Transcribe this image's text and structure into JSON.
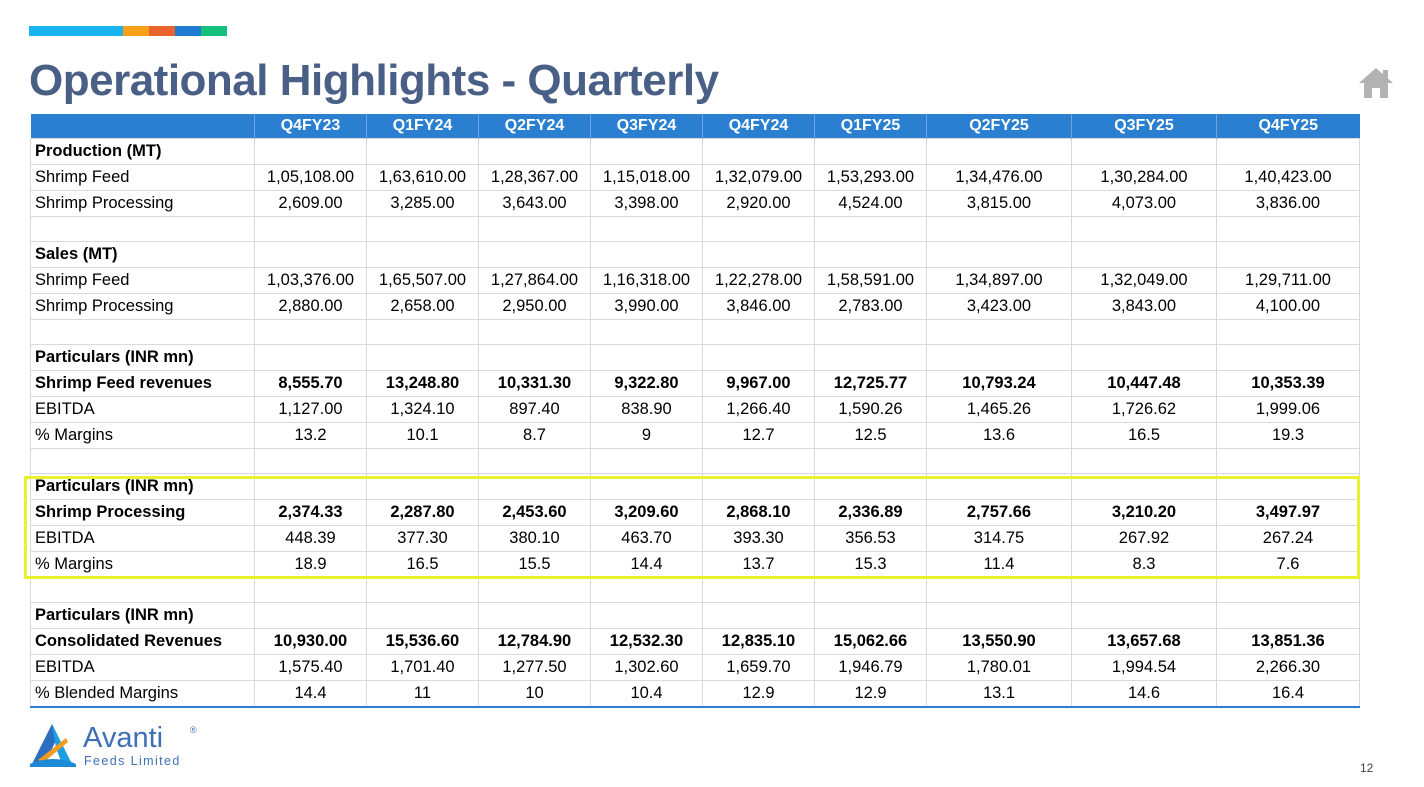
{
  "colors": {
    "accent_bar": [
      "#17b4f0",
      "#f7a11a",
      "#e8642c",
      "#1f7bd0",
      "#15c07c"
    ],
    "title": "#4a5f86",
    "header_bg": "#2a7fd0",
    "highlight": "#e9f22c"
  },
  "slide": {
    "title": "Operational Highlights - Quarterly",
    "home_icon": "home-icon",
    "page_number": "12"
  },
  "table": {
    "columns": [
      "",
      "Q4FY23",
      "Q1FY24",
      "Q2FY24",
      "Q3FY24",
      "Q4FY24",
      "Q1FY25",
      "Q2FY25",
      "Q3FY25",
      "Q4FY25"
    ],
    "rows": [
      [
        "Production (MT)",
        "",
        "",
        "",
        "",
        "",
        "",
        "",
        "",
        ""
      ],
      [
        "Shrimp Feed",
        "1,05,108.00",
        "1,63,610.00",
        "1,28,367.00",
        "1,15,018.00",
        "1,32,079.00",
        "1,53,293.00",
        "1,34,476.00",
        "1,30,284.00",
        "1,40,423.00"
      ],
      [
        "Shrimp Processing",
        "2,609.00",
        "3,285.00",
        "3,643.00",
        "3,398.00",
        "2,920.00",
        "4,524.00",
        "3,815.00",
        "4,073.00",
        "3,836.00"
      ],
      [
        "",
        "",
        "",
        "",
        "",
        "",
        "",
        "",
        "",
        ""
      ],
      [
        "Sales (MT)",
        "",
        "",
        "",
        "",
        "",
        "",
        "",
        "",
        ""
      ],
      [
        "Shrimp Feed",
        "1,03,376.00",
        "1,65,507.00",
        "1,27,864.00",
        "1,16,318.00",
        "1,22,278.00",
        "1,58,591.00",
        "1,34,897.00",
        "1,32,049.00",
        "1,29,711.00"
      ],
      [
        "Shrimp Processing",
        "2,880.00",
        "2,658.00",
        "2,950.00",
        "3,990.00",
        "3,846.00",
        "2,783.00",
        "3,423.00",
        "3,843.00",
        "4,100.00"
      ],
      [
        "",
        "",
        "",
        "",
        "",
        "",
        "",
        "",
        "",
        ""
      ],
      [
        "Particulars (INR mn)",
        "",
        "",
        "",
        "",
        "",
        "",
        "",
        "",
        ""
      ],
      [
        "Shrimp Feed revenues",
        "8,555.70",
        "13,248.80",
        "10,331.30",
        "9,322.80",
        "9,967.00",
        "12,725.77",
        "10,793.24",
        "10,447.48",
        "10,353.39"
      ],
      [
        "EBITDA",
        "1,127.00",
        "1,324.10",
        "897.40",
        "838.90",
        "1,266.40",
        "1,590.26",
        "1,465.26",
        "1,726.62",
        "1,999.06"
      ],
      [
        "% Margins",
        "13.2",
        "10.1",
        "8.7",
        "9",
        "12.7",
        "12.5",
        "13.6",
        "16.5",
        "19.3"
      ],
      [
        "",
        "",
        "",
        "",
        "",
        "",
        "",
        "",
        "",
        ""
      ],
      [
        "Particulars (INR mn)",
        "",
        "",
        "",
        "",
        "",
        "",
        "",
        "",
        ""
      ],
      [
        "Shrimp Processing",
        "2,374.33",
        "2,287.80",
        "2,453.60",
        "3,209.60",
        "2,868.10",
        "2,336.89",
        "2,757.66",
        "3,210.20",
        "3,497.97"
      ],
      [
        "EBITDA",
        "448.39",
        "377.30",
        "380.10",
        "463.70",
        "393.30",
        "356.53",
        "314.75",
        "267.92",
        "267.24"
      ],
      [
        "% Margins",
        "18.9",
        "16.5",
        "15.5",
        "14.4",
        "13.7",
        "15.3",
        "11.4",
        "8.3",
        "7.6"
      ],
      [
        "",
        "",
        "",
        "",
        "",
        "",
        "",
        "",
        "",
        ""
      ],
      [
        "Particulars (INR mn)",
        "",
        "",
        "",
        "",
        "",
        "",
        "",
        "",
        ""
      ],
      [
        "Consolidated Revenues",
        "10,930.00",
        "15,536.60",
        "12,784.90",
        "12,532.30",
        "12,835.10",
        "15,062.66",
        "13,550.90",
        "13,657.68",
        "13,851.36"
      ],
      [
        "EBITDA",
        "1,575.40",
        "1,701.40",
        "1,277.50",
        "1,302.60",
        "1,659.70",
        "1,946.79",
        "1,780.01",
        "1,994.54",
        "2,266.30"
      ],
      [
        "% Blended Margins",
        "14.4",
        "11",
        "10",
        "10.4",
        "12.9",
        "12.9",
        "13.1",
        "14.6",
        "16.4"
      ]
    ]
  },
  "logo": {
    "name": "Avanti",
    "registered": "®",
    "subtitle": "Feeds Limited"
  }
}
